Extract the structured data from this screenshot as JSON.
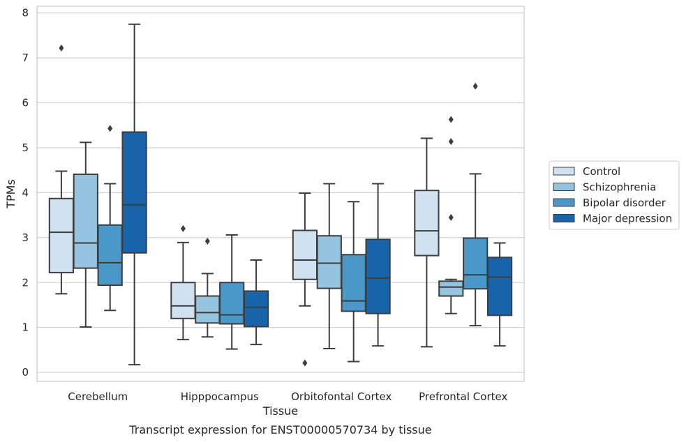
{
  "chart_data": {
    "type": "box",
    "title": "",
    "xlabel": "Tissue",
    "ylabel": "TPMs",
    "caption": "Transcript expression for ENST00000570734 by tissue",
    "categories": [
      "Cerebellum",
      "Hipppocampus",
      "Orbitofontal Cortex",
      "Prefrontal Cortex"
    ],
    "ylim": [
      -0.2,
      8.15
    ],
    "yticks": [
      "0",
      "1",
      "2",
      "3",
      "4",
      "5",
      "6",
      "7",
      "8"
    ],
    "grid": "horizontal",
    "legend": {
      "placement": "right",
      "entries": [
        "Control",
        "Schizophrenia",
        "Bipolar disorder",
        "Major depression"
      ]
    },
    "colors": [
      "#d0e1f2",
      "#94c4df",
      "#4a98c9",
      "#1764ab"
    ],
    "series": [
      {
        "name": "Control",
        "boxes": [
          {
            "min": 1.75,
            "q1": 2.22,
            "median": 3.12,
            "q3": 3.87,
            "max": 4.48,
            "outliers": [
              7.22
            ]
          },
          {
            "min": 0.73,
            "q1": 1.2,
            "median": 1.48,
            "q3": 2.0,
            "max": 2.89,
            "outliers": [
              3.2
            ]
          },
          {
            "min": 1.48,
            "q1": 2.07,
            "median": 2.5,
            "q3": 3.16,
            "max": 3.99,
            "outliers": [
              0.21
            ]
          },
          {
            "min": 0.57,
            "q1": 2.6,
            "median": 3.15,
            "q3": 4.05,
            "max": 5.21,
            "outliers": []
          }
        ]
      },
      {
        "name": "Schizophrenia",
        "boxes": [
          {
            "min": 1.01,
            "q1": 2.32,
            "median": 2.88,
            "q3": 4.41,
            "max": 5.12,
            "outliers": []
          },
          {
            "min": 0.79,
            "q1": 1.1,
            "median": 1.33,
            "q3": 1.7,
            "max": 2.2,
            "outliers": [
              2.92
            ]
          },
          {
            "min": 0.53,
            "q1": 1.87,
            "median": 2.43,
            "q3": 3.04,
            "max": 4.2,
            "outliers": []
          },
          {
            "min": 1.31,
            "q1": 1.7,
            "median": 1.9,
            "q3": 2.03,
            "max": 2.07,
            "outliers": [
              5.63,
              5.14,
              3.45
            ]
          }
        ]
      },
      {
        "name": "Bipolar disorder",
        "boxes": [
          {
            "min": 1.38,
            "q1": 1.94,
            "median": 2.44,
            "q3": 3.28,
            "max": 4.2,
            "outliers": [
              5.43
            ]
          },
          {
            "min": 0.52,
            "q1": 1.08,
            "median": 1.28,
            "q3": 2.0,
            "max": 3.06,
            "outliers": []
          },
          {
            "min": 0.24,
            "q1": 1.36,
            "median": 1.59,
            "q3": 2.62,
            "max": 3.8,
            "outliers": []
          },
          {
            "min": 1.04,
            "q1": 1.86,
            "median": 2.17,
            "q3": 2.99,
            "max": 4.42,
            "outliers": [
              6.37
            ]
          }
        ]
      },
      {
        "name": "Major depression",
        "boxes": [
          {
            "min": 0.17,
            "q1": 2.66,
            "median": 3.73,
            "q3": 5.35,
            "max": 7.75,
            "outliers": []
          },
          {
            "min": 0.62,
            "q1": 1.02,
            "median": 1.45,
            "q3": 1.81,
            "max": 2.5,
            "outliers": []
          },
          {
            "min": 0.59,
            "q1": 1.31,
            "median": 2.1,
            "q3": 2.96,
            "max": 4.2,
            "outliers": []
          },
          {
            "min": 0.59,
            "q1": 1.27,
            "median": 2.12,
            "q3": 2.56,
            "max": 2.88,
            "outliers": []
          }
        ]
      }
    ]
  }
}
